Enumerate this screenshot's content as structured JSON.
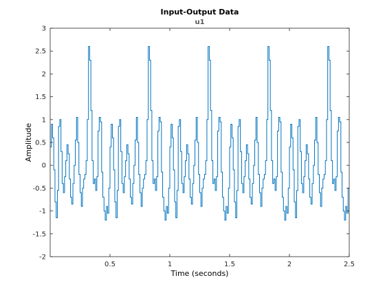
{
  "chart_data": {
    "type": "line",
    "step": true,
    "title": "Input-Output Data",
    "subtitle": "u1",
    "xlabel": "Time (seconds)",
    "ylabel": "Amplitude",
    "xlim": [
      0,
      2.5
    ],
    "ylim": [
      -2,
      3
    ],
    "xticks": [
      0.5,
      1,
      1.5,
      2,
      2.5
    ],
    "xtick_labels": [
      "0.5",
      "1",
      "1.5",
      "2",
      "2.5"
    ],
    "yticks": [
      -2,
      -1.5,
      -1,
      -0.5,
      0,
      0.5,
      1,
      1.5,
      2,
      2.5,
      3
    ],
    "ytick_labels": [
      "-2",
      "-1.5",
      "-1",
      "-0.5",
      "0",
      "0.5",
      "1",
      "1.5",
      "2",
      "2.5",
      "3"
    ],
    "grid": false,
    "box": true,
    "sample_time": 0.01,
    "line_color": "#0072bd",
    "series": [
      {
        "period": 0.5,
        "values_one_period": [
          0.4,
          0.9,
          0.6,
          -0.1,
          -0.8,
          -1.15,
          -0.55,
          0.85,
          1.0,
          0.3,
          -0.4,
          -0.6,
          -0.25,
          0.1,
          0.45,
          0.25,
          -0.3,
          -0.7,
          -0.85,
          -0.4,
          0.0,
          0.55,
          1.05,
          0.5,
          -0.2,
          -0.6,
          -0.9,
          -0.5,
          -0.3,
          -0.2,
          0.1,
          1.0,
          2.6,
          2.3,
          1.2,
          0.1,
          -0.4,
          -0.3,
          -0.55,
          -0.25,
          0.75,
          1.05,
          0.95,
          -0.15,
          -0.7,
          -1.0,
          -1.2,
          -0.9,
          -1.05,
          -0.5
        ]
      }
    ]
  }
}
